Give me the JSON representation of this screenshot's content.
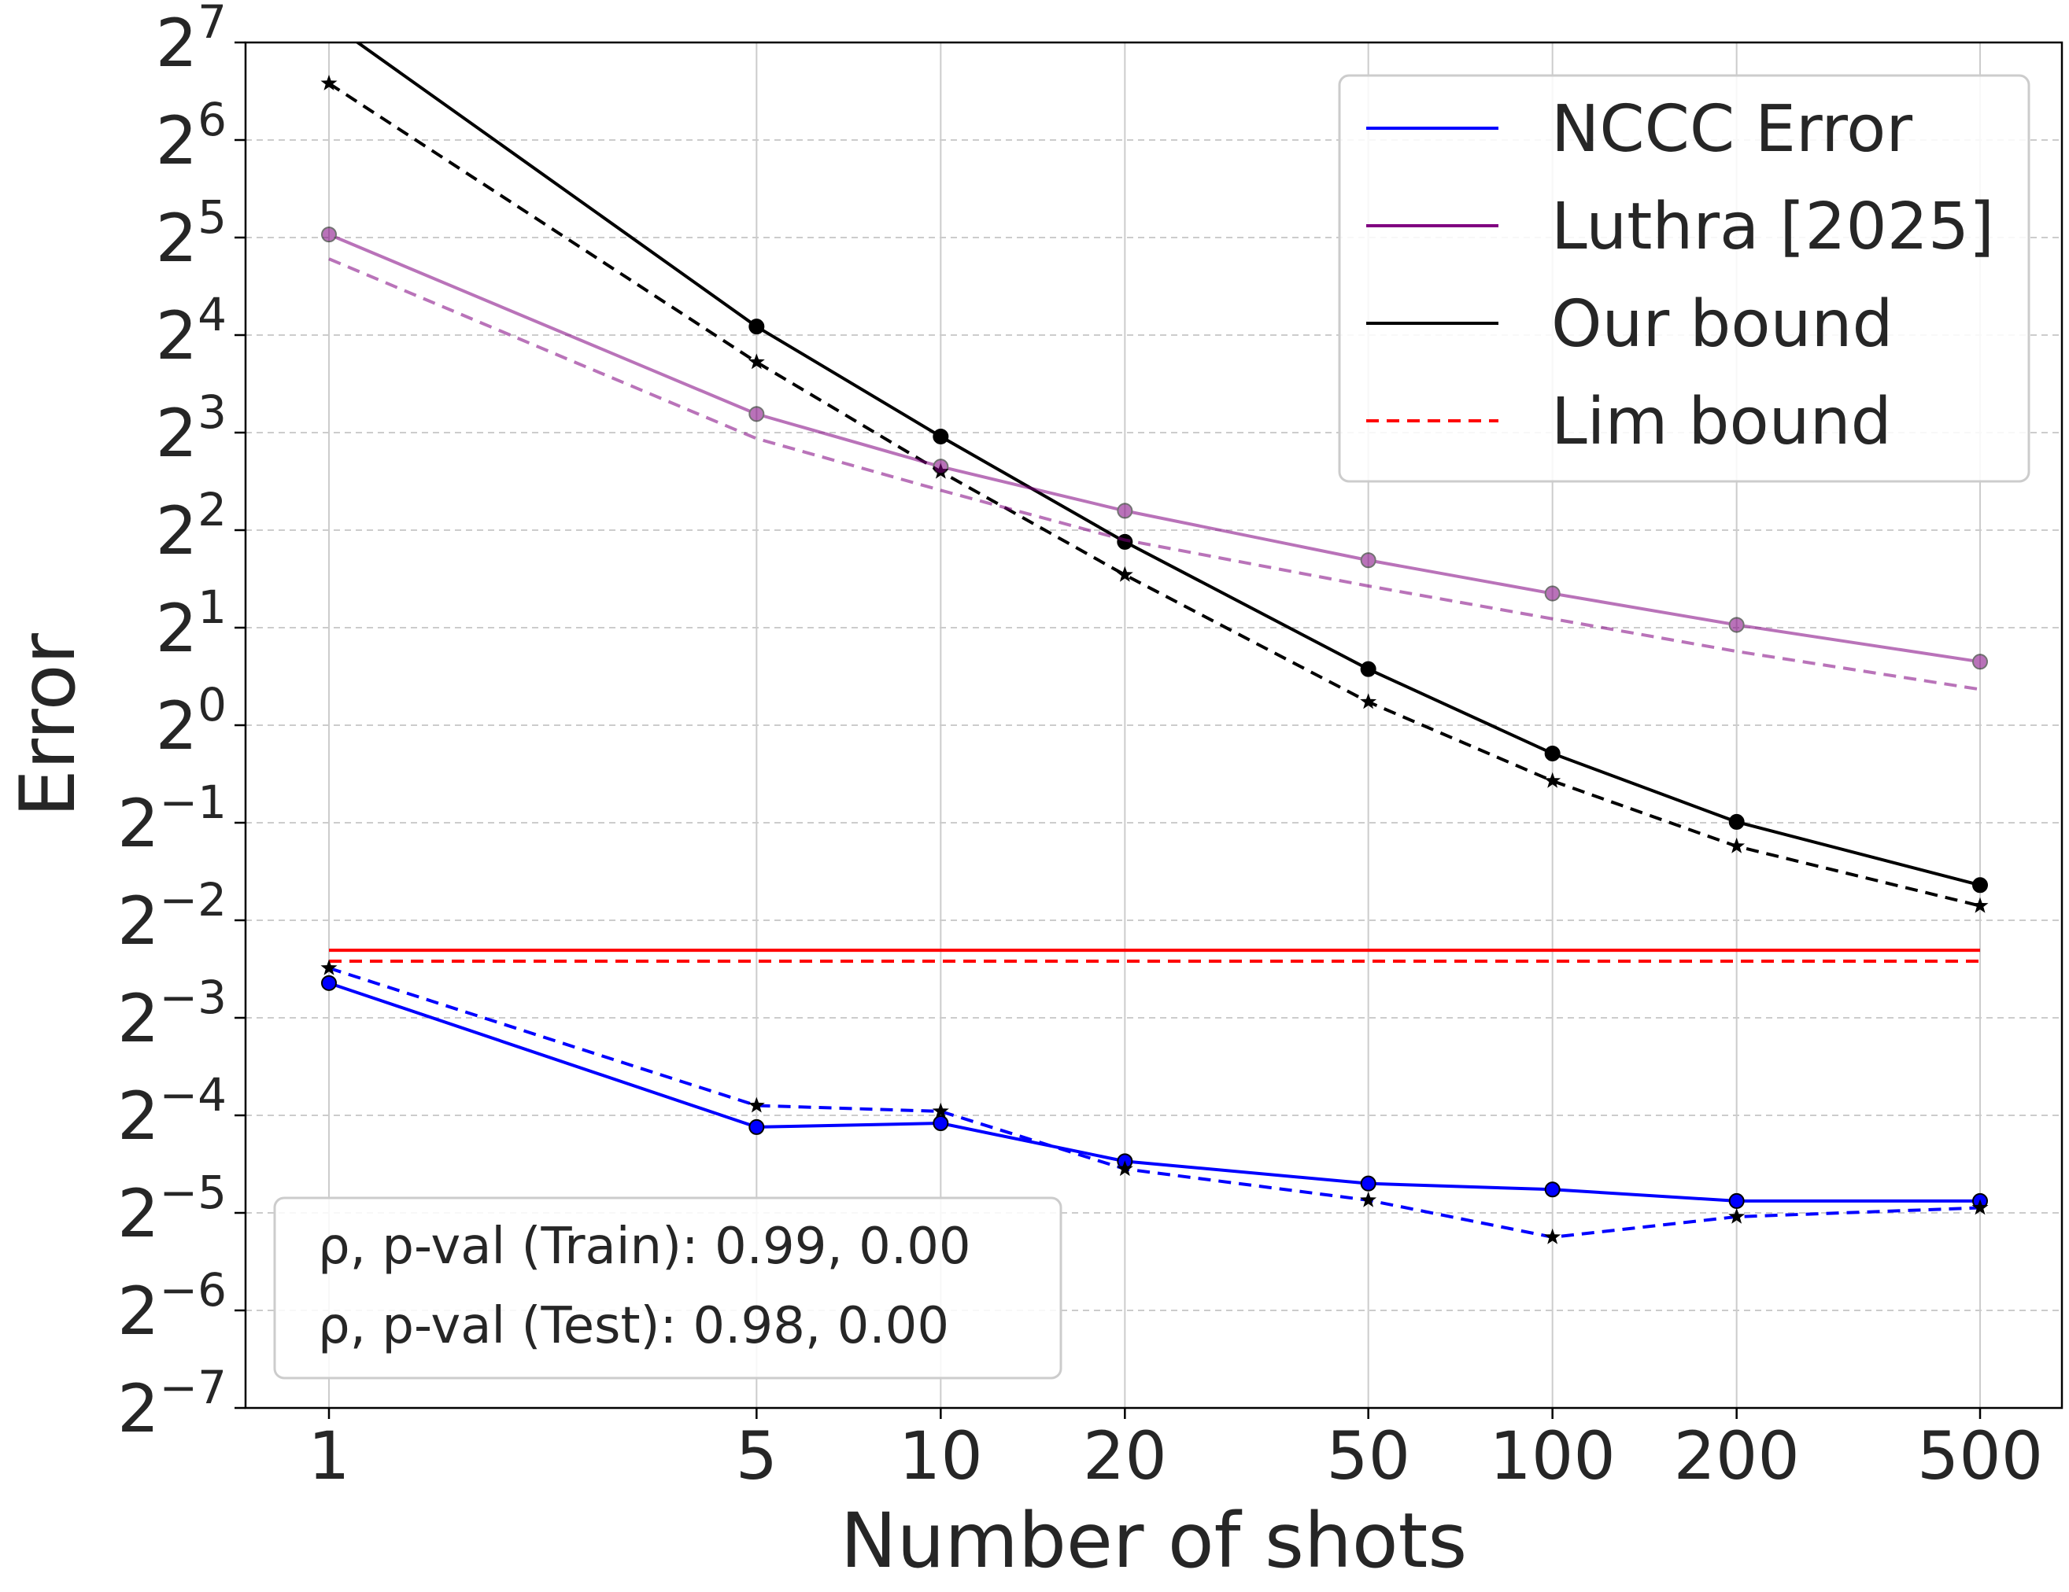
{
  "chart_data": {
    "type": "line",
    "xlabel": "Number of shots",
    "ylabel": "Error",
    "x_scale": "log",
    "y_scale": "log2",
    "x_ticks": [
      1,
      5,
      10,
      20,
      50,
      100,
      200,
      500
    ],
    "y_tick_exponents": [
      7,
      6,
      5,
      4,
      3,
      2,
      1,
      0,
      -1,
      -2,
      -3,
      -4,
      -5,
      -6,
      -7
    ],
    "ylim": [
      0.0078125,
      128
    ],
    "grid": true,
    "x": [
      1,
      5,
      10,
      20,
      50,
      100,
      200,
      500
    ],
    "series": [
      {
        "color": "#000000",
        "dashed": false,
        "marker": "circle",
        "alpha": 1,
        "values": [
          148,
          17.0,
          7.78,
          3.68,
          1.49,
          0.818,
          0.503,
          0.321
        ]
      },
      {
        "color": "#000000",
        "dashed": true,
        "marker": "star",
        "alpha": 1,
        "values": [
          95.7,
          13.2,
          6.06,
          2.91,
          1.18,
          0.673,
          0.423,
          0.277
        ]
      },
      {
        "color": "#800080",
        "dashed": false,
        "marker": "circle",
        "alpha": 0.55,
        "values": [
          32.7,
          9.13,
          6.28,
          4.59,
          3.23,
          2.55,
          2.04,
          1.57
        ]
      },
      {
        "color": "#800080",
        "dashed": true,
        "marker": "none",
        "alpha": 0.55,
        "values": [
          27.5,
          7.67,
          5.31,
          3.73,
          2.69,
          2.13,
          1.69,
          1.29
        ]
      },
      {
        "color": "#ff0000",
        "dashed": false,
        "marker": "none",
        "alpha": 1,
        "values": [
          0.202,
          0.202,
          0.202,
          0.202,
          0.202,
          0.202,
          0.202,
          0.202
        ]
      },
      {
        "color": "#ff0000",
        "dashed": true,
        "marker": "none",
        "alpha": 1,
        "values": [
          0.187,
          0.187,
          0.187,
          0.187,
          0.187,
          0.187,
          0.187,
          0.187
        ]
      },
      {
        "color": "#0000ff",
        "dashed": false,
        "marker": "circle",
        "alpha": 1,
        "values": [
          0.16,
          0.0575,
          0.0591,
          0.0451,
          0.0385,
          0.0369,
          0.034,
          0.034
        ]
      },
      {
        "color": "#0000ff",
        "dashed": true,
        "marker": "star",
        "alpha": 1,
        "values": [
          0.178,
          0.067,
          0.0643,
          0.0427,
          0.0342,
          0.0263,
          0.0304,
          0.0324
        ]
      }
    ],
    "legend": {
      "placement": "top-right",
      "entries": [
        {
          "label": "NCCC Error",
          "color": "#0000ff",
          "dashed": false
        },
        {
          "label": "Luthra [2025]",
          "color": "#800080",
          "dashed": false
        },
        {
          "label": "Our bound",
          "color": "#000000",
          "dashed": false
        },
        {
          "label": "Lim bound",
          "color": "#ff0000",
          "dashed": true
        }
      ]
    },
    "annotations": {
      "placement": "bottom-left",
      "lines": [
        "ρ, p-val (Train): 0.99, 0.00",
        "ρ, p-val (Test): 0.98, 0.00"
      ]
    }
  }
}
